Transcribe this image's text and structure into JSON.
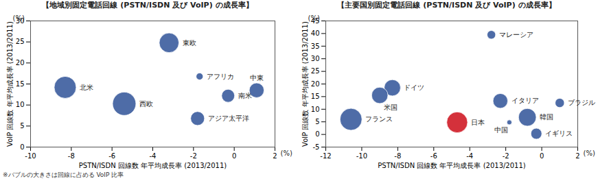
{
  "chart_data": [
    {
      "type": "scatter",
      "title": "【地域別固定電話回線 (PSTN/ISDN 及び VoIP) の成長率】",
      "x_label": "PSTN/ISDN 回線数 年平均成長率 (2013/2011)",
      "y_label": "VoIP 回線数 年平均成長率 (2013/2011)",
      "x_unit": "(%)",
      "y_unit": "(%)",
      "labels": [
        "北米",
        "西欧",
        "東欧",
        "アフリカ",
        "南米",
        "中東",
        "アジア太平洋"
      ],
      "x": [
        -8.3,
        -5.4,
        -3.2,
        -1.7,
        -0.3,
        1.1,
        -1.8
      ],
      "y": [
        14.2,
        10.3,
        24.8,
        16.8,
        12.2,
        13.5,
        6.8
      ],
      "sizes": [
        40,
        45,
        32,
        4,
        14,
        18,
        16
      ],
      "colors": [
        "#3f5f9f",
        "#3f5f9f",
        "#3f5f9f",
        "#3f5f9f",
        "#3f5f9f",
        "#3f5f9f",
        "#3f5f9f"
      ],
      "xlim": [
        -10,
        2
      ],
      "xticks": [
        -10,
        -8,
        -6,
        -4,
        -2,
        0,
        2
      ],
      "ylim": [
        0,
        30
      ],
      "yticks": [
        0,
        5,
        10,
        15,
        20,
        25,
        30
      ],
      "grid": false
    },
    {
      "type": "scatter",
      "title": "【主要国別固定電話回線 (PSTN/ISDN 及び VoIP) の成長率】",
      "x_label": "PSTN/ISDN 回線数 年平均成長率 (2013/2011)",
      "y_label": "VoIP 回線数 年平均成長率 (2013/2011)",
      "x_unit": "(%)",
      "y_unit": "(%)",
      "labels": [
        "マレーシア",
        "ドイツ",
        "米国",
        "フランス",
        "日本",
        "イタリア",
        "ブラジル",
        "中国",
        "韓国",
        "イギリス"
      ],
      "x": [
        -2.8,
        -8.3,
        -9.0,
        -10.6,
        -4.7,
        -2.3,
        1.0,
        -1.8,
        -0.8,
        -0.3
      ],
      "y": [
        39.5,
        18.5,
        15.5,
        6.0,
        4.8,
        13.3,
        12.5,
        4.8,
        6.8,
        0.3
      ],
      "sizes": [
        6,
        22,
        22,
        40,
        36,
        18,
        7,
        2,
        26,
        10
      ],
      "colors": [
        "#3f5f9f",
        "#3f5f9f",
        "#3f5f9f",
        "#3f5f9f",
        "#d0202a",
        "#3f5f9f",
        "#3f5f9f",
        "#3f5f9f",
        "#3f5f9f",
        "#3f5f9f"
      ],
      "xlim": [
        -12,
        2
      ],
      "xticks": [
        -12,
        -10,
        -8,
        -6,
        -4,
        -2,
        0,
        2
      ],
      "ylim": [
        -5,
        45
      ],
      "yticks": [
        -5,
        0,
        5,
        10,
        15,
        20,
        25,
        30,
        35,
        40,
        45
      ],
      "grid": false
    }
  ],
  "footnote": "※バブルの大きさは回線に占める VoIP 比率"
}
